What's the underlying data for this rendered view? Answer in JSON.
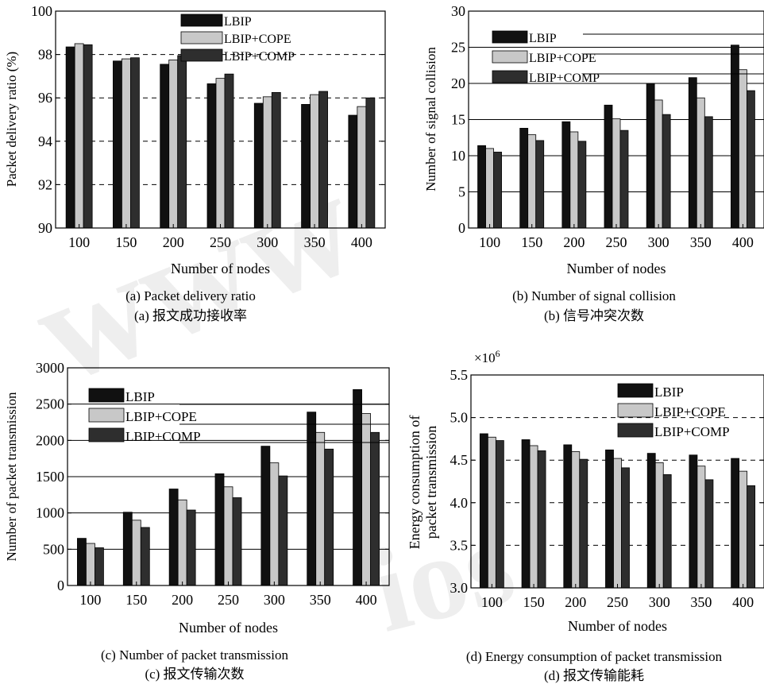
{
  "chart_data": [
    {
      "type": "bar",
      "categories": [
        "100",
        "150",
        "200",
        "250",
        "300",
        "350",
        "400"
      ],
      "series": [
        {
          "name": "LBIP",
          "values": [
            98.35,
            97.7,
            97.55,
            96.65,
            95.75,
            95.7,
            95.2
          ]
        },
        {
          "name": "LBIP+COPE",
          "values": [
            98.5,
            97.8,
            97.75,
            96.9,
            96.05,
            96.15,
            95.6
          ]
        },
        {
          "name": "LBIP+COMP",
          "values": [
            98.45,
            97.85,
            97.95,
            97.1,
            96.25,
            96.3,
            96.0
          ]
        }
      ],
      "xlabel": "Number of nodes",
      "ylabel": "Packet delivery ratio (%)",
      "ylim": [
        90,
        100
      ],
      "yticks": [
        "90",
        "92",
        "94",
        "96",
        "98",
        "100"
      ],
      "grid": "dashed horizontal",
      "legend_position": "top-right",
      "caption_en": "(a) Packet delivery ratio",
      "caption_cn": "(a)  报文成功接收率"
    },
    {
      "type": "bar",
      "categories": [
        "100",
        "150",
        "200",
        "250",
        "300",
        "350",
        "400"
      ],
      "series": [
        {
          "name": "LBIP",
          "values": [
            11.4,
            13.8,
            14.7,
            17.0,
            20.0,
            20.8,
            25.3
          ]
        },
        {
          "name": "LBIP+COPE",
          "values": [
            11.0,
            12.9,
            13.3,
            15.1,
            17.7,
            18.0,
            21.9
          ]
        },
        {
          "name": "LBIP+COMP",
          "values": [
            10.5,
            12.1,
            12.0,
            13.5,
            15.7,
            15.4,
            19.0
          ]
        }
      ],
      "xlabel": "Number of nodes",
      "ylabel": "Number of signal collision",
      "ylim": [
        0,
        30
      ],
      "yticks": [
        "0",
        "5",
        "10",
        "15",
        "20",
        "25",
        "30"
      ],
      "grid": "solid horizontal",
      "legend_position": "top-left",
      "caption_en": "(b) Number of signal collision",
      "caption_cn": "(b)  信号冲突次数"
    },
    {
      "type": "bar",
      "categories": [
        "100",
        "150",
        "200",
        "250",
        "300",
        "350",
        "400"
      ],
      "series": [
        {
          "name": "LBIP",
          "values": [
            650,
            1010,
            1330,
            1540,
            1920,
            2390,
            2700
          ]
        },
        {
          "name": "LBIP+COPE",
          "values": [
            580,
            900,
            1180,
            1360,
            1690,
            2110,
            2370
          ]
        },
        {
          "name": "LBIP+COMP",
          "values": [
            520,
            800,
            1040,
            1210,
            1510,
            1880,
            2110
          ]
        }
      ],
      "xlabel": "Number of nodes",
      "ylabel": "Number of packet transmission",
      "ylim": [
        0,
        3000
      ],
      "yticks": [
        "0",
        "500",
        "1000",
        "1500",
        "2000",
        "2500",
        "3000"
      ],
      "grid": "solid horizontal",
      "legend_position": "top-left",
      "caption_en": "(c) Number of packet transmission",
      "caption_cn": "(c)  报文传输次数"
    },
    {
      "type": "bar",
      "categories": [
        "100",
        "150",
        "200",
        "250",
        "300",
        "350",
        "400"
      ],
      "series": [
        {
          "name": "LBIP",
          "values": [
            4.81,
            4.74,
            4.68,
            4.62,
            4.58,
            4.56,
            4.52
          ]
        },
        {
          "name": "LBIP+COPE",
          "values": [
            4.77,
            4.67,
            4.6,
            4.52,
            4.47,
            4.43,
            4.37
          ]
        },
        {
          "name": "LBIP+COMP",
          "values": [
            4.73,
            4.61,
            4.51,
            4.41,
            4.33,
            4.27,
            4.2
          ]
        }
      ],
      "xlabel": "Number of nodes",
      "ylabel_lines": [
        "Energy consumption of",
        "packet transmission"
      ],
      "ylim": [
        3.0,
        5.5
      ],
      "yticks": [
        "3.0",
        "3.5",
        "4.0",
        "4.5",
        "5.0",
        "5.5"
      ],
      "multiplier_base": "×10",
      "multiplier_exp": "6",
      "grid": "dashed horizontal",
      "legend_position": "top-right",
      "caption_en": "(d) Energy consumption of packet transmission",
      "caption_cn": "(d)  报文传输能耗"
    }
  ],
  "colors": {
    "LBIP": "#111111",
    "LBIP+COPE": "#c8c8c8",
    "LBIP+COMP": "#2e2e2e",
    "axis": "#000000",
    "grid": "#000000"
  },
  "watermark": {
    "line1": "www",
    "line2": "ios"
  }
}
